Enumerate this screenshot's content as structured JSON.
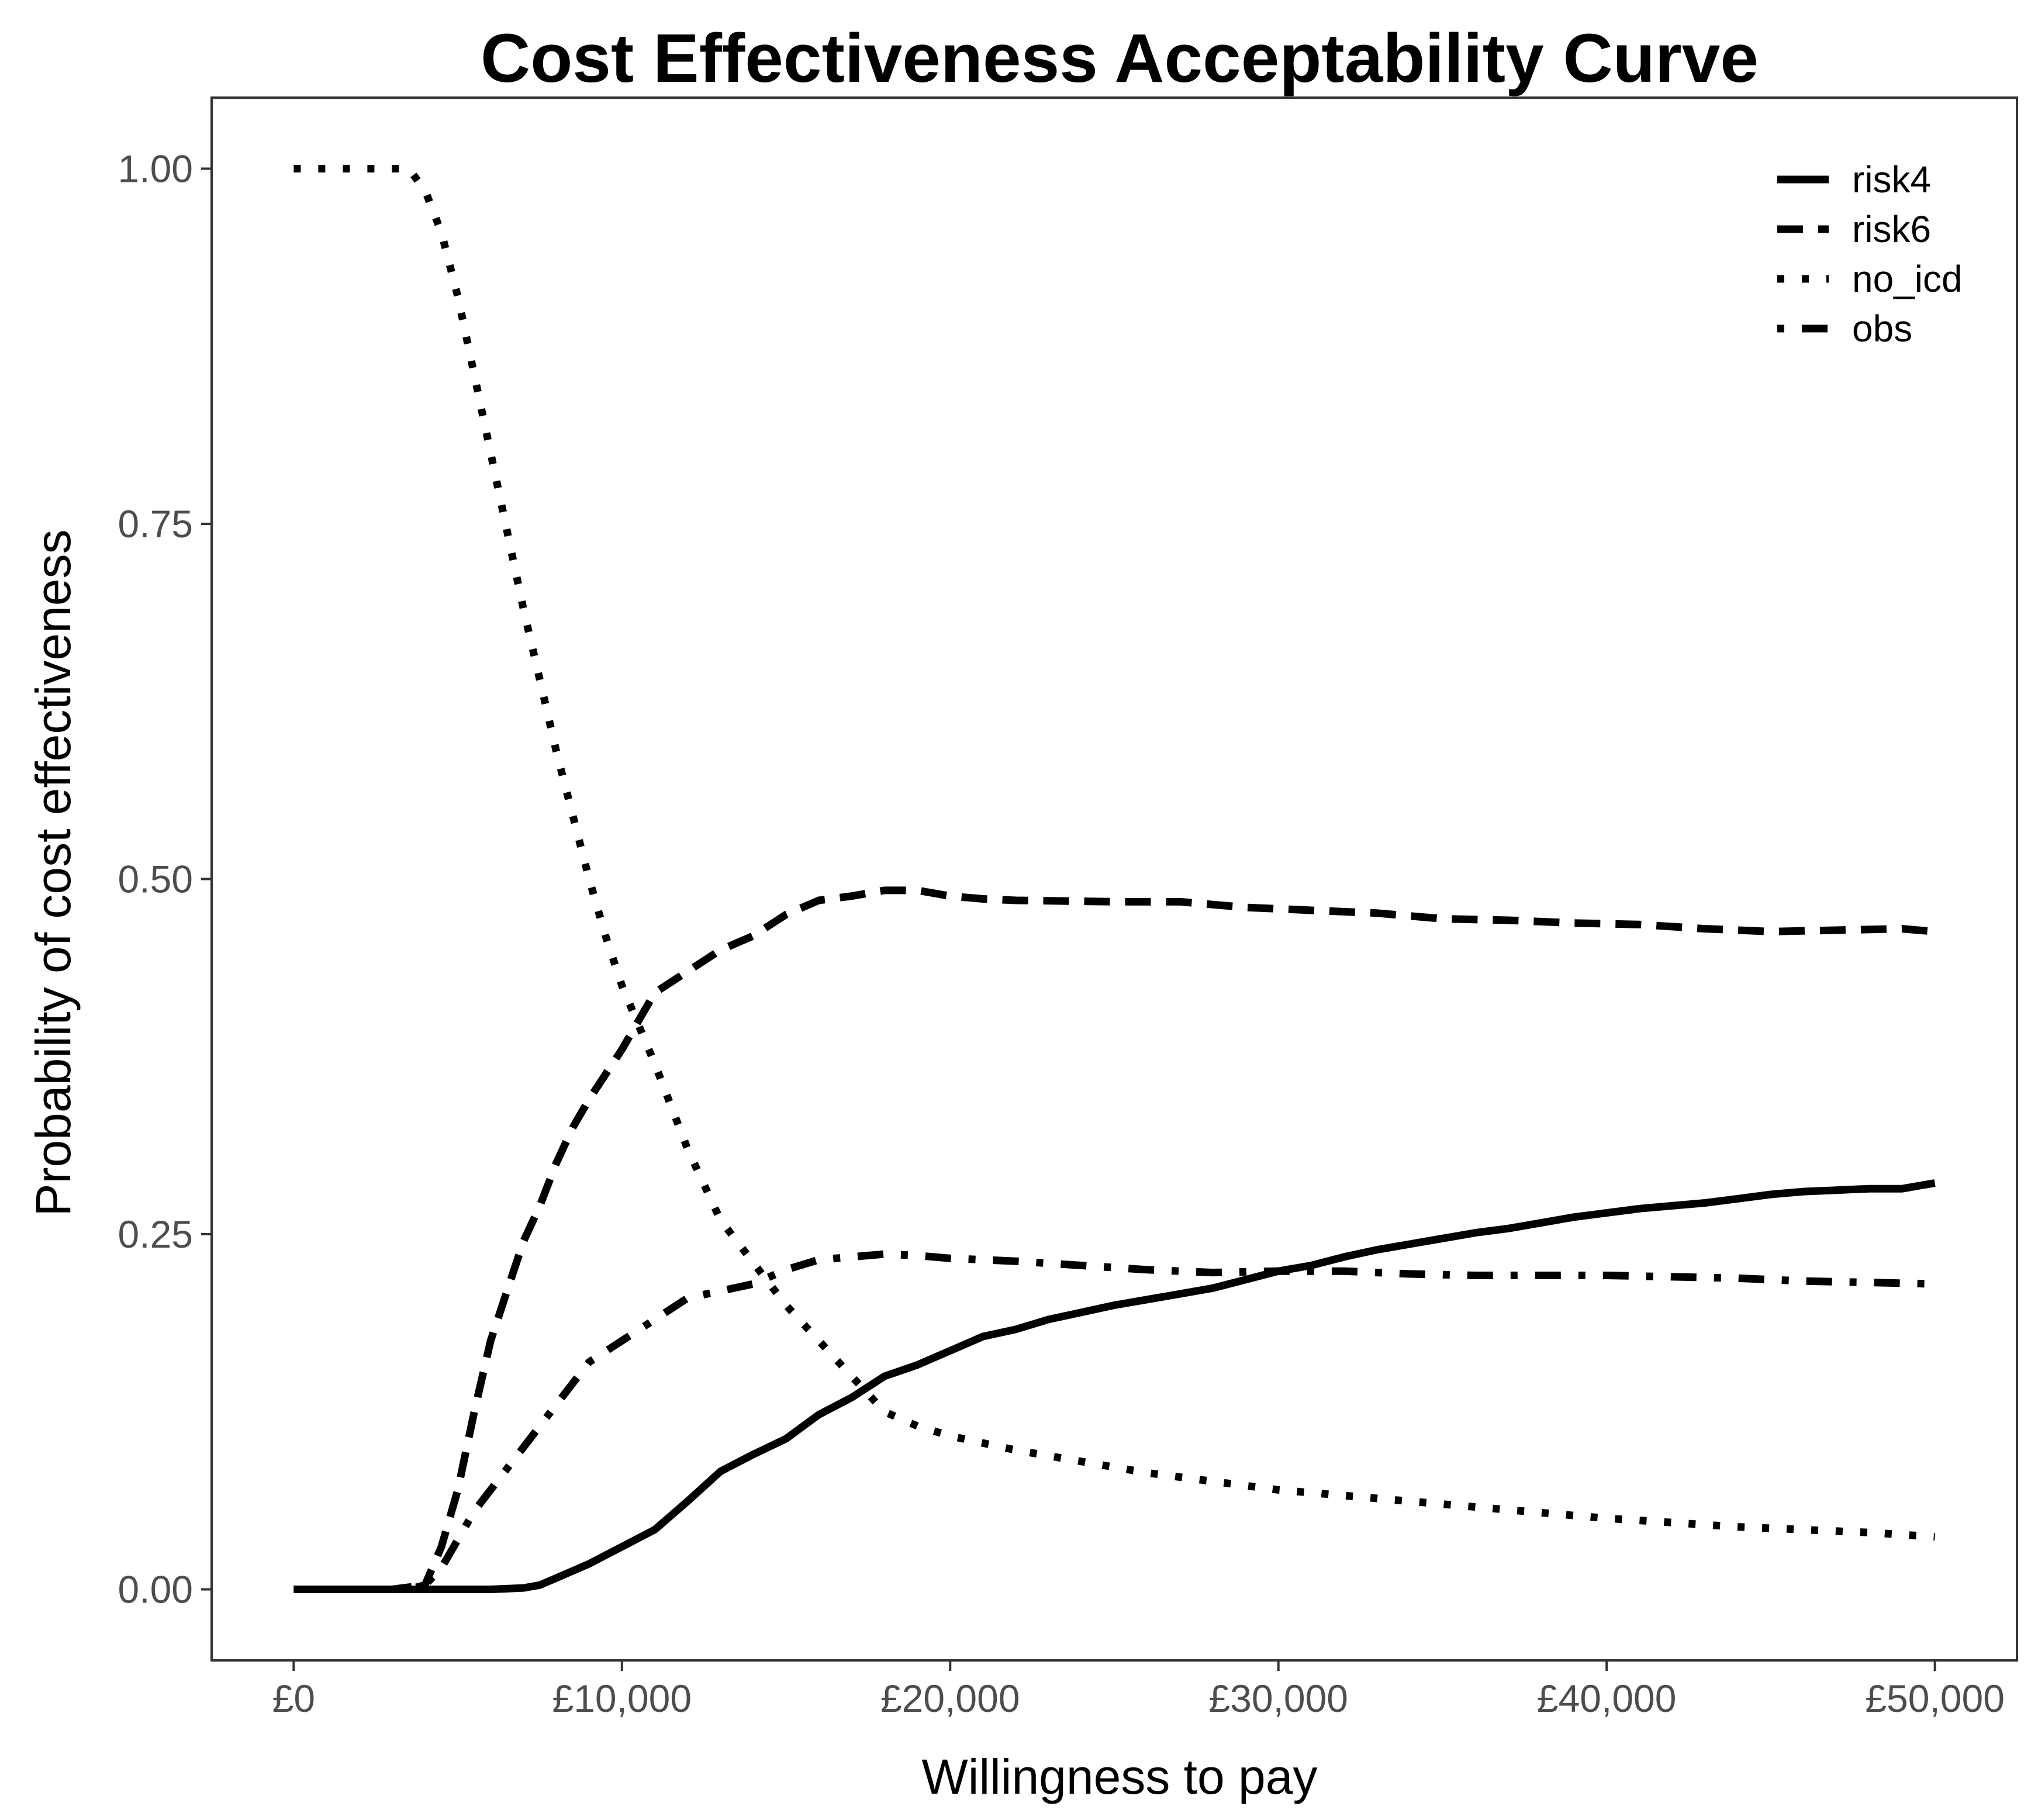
{
  "chart_data": {
    "type": "line",
    "title": "Cost Effectiveness Acceptability Curve",
    "xlabel": "Willingness to pay",
    "ylabel": "Probability of cost effectiveness",
    "xlim": [
      -2500,
      52500
    ],
    "ylim": [
      -0.05,
      1.05
    ],
    "x_ticks": [
      0,
      10000,
      20000,
      30000,
      40000,
      50000
    ],
    "x_tick_labels": [
      "£0",
      "£10,000",
      "£20,000",
      "£30,000",
      "£40,000",
      "£50,000"
    ],
    "y_ticks": [
      0,
      0.25,
      0.5,
      0.75,
      1.0
    ],
    "y_tick_labels": [
      "0.00",
      "0.25",
      "0.50",
      "0.75",
      "1.00"
    ],
    "grid": false,
    "legend_position": "top-right",
    "series": [
      {
        "name": "risk4",
        "dash": "solid",
        "x": [
          0,
          3000,
          5000,
          6000,
          7000,
          7500,
          8000,
          9000,
          10000,
          11000,
          12000,
          13000,
          14000,
          15000,
          16000,
          17000,
          18000,
          19000,
          20000,
          21000,
          22000,
          23000,
          24000,
          25000,
          26000,
          27000,
          28000,
          29000,
          30000,
          31000,
          32000,
          33000,
          34000,
          35000,
          36000,
          37000,
          38000,
          39000,
          40000,
          41000,
          42000,
          43000,
          44000,
          45000,
          46000,
          47000,
          48000,
          49000,
          50000
        ],
        "values": [
          0,
          0,
          0,
          0,
          0.001,
          0.003,
          0.008,
          0.018,
          0.03,
          0.042,
          0.062,
          0.083,
          0.095,
          0.106,
          0.123,
          0.135,
          0.15,
          0.158,
          0.168,
          0.178,
          0.183,
          0.19,
          0.195,
          0.2,
          0.204,
          0.208,
          0.212,
          0.218,
          0.224,
          0.228,
          0.234,
          0.239,
          0.243,
          0.247,
          0.251,
          0.254,
          0.258,
          0.262,
          0.265,
          0.268,
          0.27,
          0.272,
          0.275,
          0.278,
          0.28,
          0.281,
          0.282,
          0.282,
          0.286
        ]
      },
      {
        "name": "risk6",
        "dash": "dashed",
        "x": [
          0,
          3500,
          4000,
          4500,
          5000,
          5500,
          6000,
          6500,
          7000,
          7500,
          8000,
          8500,
          9000,
          10000,
          11000,
          12000,
          13000,
          14000,
          15000,
          16000,
          17000,
          18000,
          19000,
          20000,
          21000,
          22000,
          25000,
          27000,
          29000,
          31000,
          33000,
          35000,
          37000,
          39000,
          41000,
          43000,
          45000,
          47000,
          49000,
          50000
        ],
        "values": [
          0,
          0,
          0.003,
          0.03,
          0.07,
          0.125,
          0.175,
          0.21,
          0.245,
          0.27,
          0.3,
          0.325,
          0.345,
          0.38,
          0.42,
          0.435,
          0.45,
          0.46,
          0.475,
          0.485,
          0.488,
          0.492,
          0.492,
          0.488,
          0.486,
          0.485,
          0.484,
          0.484,
          0.48,
          0.478,
          0.476,
          0.472,
          0.471,
          0.469,
          0.468,
          0.465,
          0.463,
          0.464,
          0.465,
          0.463
        ]
      },
      {
        "name": "no_icd",
        "dash": "dotted",
        "x": [
          0,
          1000,
          2000,
          3000,
          3500,
          4000,
          4500,
          5000,
          5500,
          6000,
          6500,
          7000,
          7500,
          8000,
          8500,
          9000,
          9500,
          10000,
          11000,
          12000,
          13000,
          14000,
          15000,
          16000,
          17000,
          18000,
          19000,
          20000,
          22000,
          24000,
          26000,
          28000,
          30000,
          32000,
          34000,
          36000,
          38000,
          40000,
          42000,
          44000,
          46000,
          48000,
          50000
        ],
        "values": [
          1.0,
          1.0,
          1.0,
          1.0,
          1.0,
          0.985,
          0.955,
          0.91,
          0.855,
          0.8,
          0.745,
          0.69,
          0.64,
          0.59,
          0.545,
          0.5,
          0.46,
          0.425,
          0.37,
          0.31,
          0.26,
          0.23,
          0.2,
          0.175,
          0.15,
          0.125,
          0.115,
          0.108,
          0.098,
          0.09,
          0.082,
          0.076,
          0.07,
          0.066,
          0.062,
          0.058,
          0.054,
          0.05,
          0.047,
          0.044,
          0.042,
          0.04,
          0.037
        ]
      },
      {
        "name": "obs",
        "dash": "dotdash",
        "x": [
          0,
          3000,
          4000,
          4500,
          5000,
          5500,
          6000,
          7000,
          8000,
          9000,
          10000,
          11000,
          12000,
          13000,
          14000,
          15000,
          16000,
          17000,
          18000,
          19000,
          20000,
          22000,
          24000,
          26000,
          28000,
          30000,
          32000,
          34000,
          36000,
          38000,
          40000,
          42000,
          44000,
          46000,
          48000,
          50000
        ],
        "values": [
          0,
          0,
          0.003,
          0.015,
          0.035,
          0.055,
          0.07,
          0.1,
          0.13,
          0.16,
          0.175,
          0.19,
          0.205,
          0.21,
          0.215,
          0.225,
          0.232,
          0.234,
          0.236,
          0.235,
          0.233,
          0.231,
          0.228,
          0.225,
          0.223,
          0.224,
          0.224,
          0.222,
          0.221,
          0.221,
          0.221,
          0.22,
          0.219,
          0.217,
          0.216,
          0.215
        ]
      }
    ]
  }
}
